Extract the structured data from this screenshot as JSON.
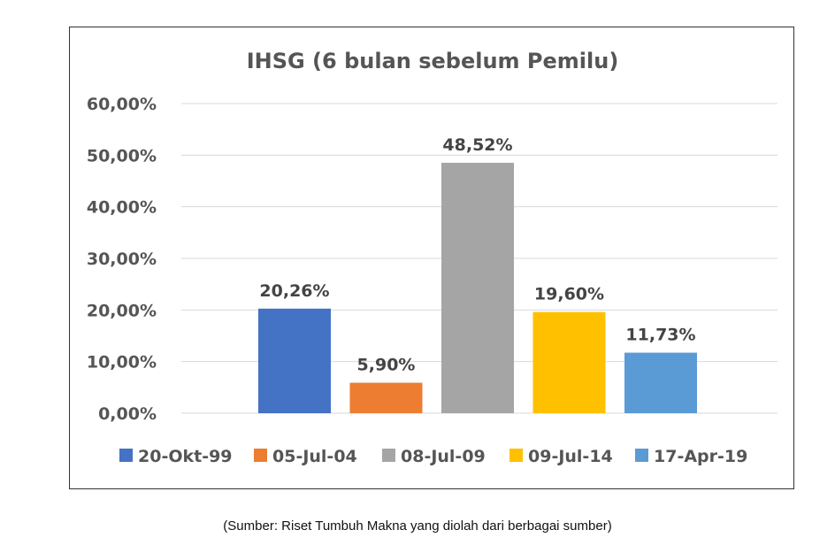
{
  "chart_data": {
    "type": "bar",
    "title": "IHSG (6 bulan sebelum Pemilu)",
    "xlabel": "",
    "ylabel": "",
    "ylim": [
      0,
      60
    ],
    "y_ticks": [
      0,
      10,
      20,
      30,
      40,
      50,
      60
    ],
    "y_tick_labels": [
      "0,00%",
      "10,00%",
      "20,00%",
      "30,00%",
      "40,00%",
      "50,00%",
      "60,00%"
    ],
    "grid": true,
    "legend_position": "bottom",
    "series": [
      {
        "name": "20-Okt-99",
        "value": 20.26,
        "label": "20,26%",
        "color": "#4472C4"
      },
      {
        "name": "05-Jul-04",
        "value": 5.9,
        "label": "5,90%",
        "color": "#ED7D31"
      },
      {
        "name": "08-Jul-09",
        "value": 48.52,
        "label": "48,52%",
        "color": "#A5A5A5"
      },
      {
        "name": "09-Jul-14",
        "value": 19.6,
        "label": "19,60%",
        "color": "#FFC000"
      },
      {
        "name": "17-Apr-19",
        "value": 11.73,
        "label": "11,73%",
        "color": "#5B9BD5"
      }
    ]
  },
  "source_note": "(Sumber: Riset Tumbuh Makna yang diolah dari berbagai sumber)"
}
